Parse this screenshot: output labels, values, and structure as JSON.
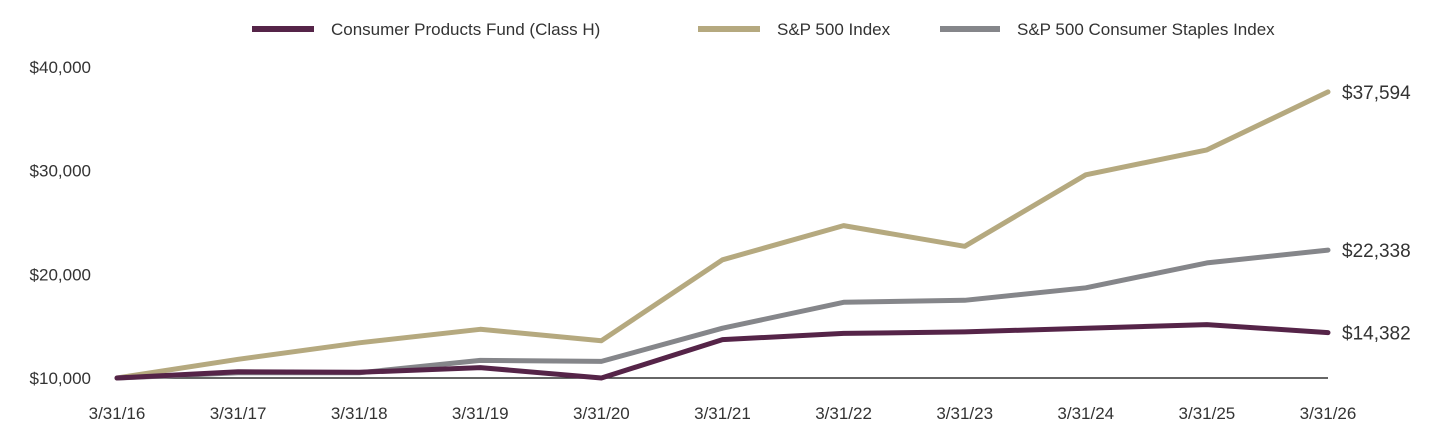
{
  "chart_data": {
    "type": "line",
    "title": "",
    "xlabel": "",
    "ylabel": "",
    "x": [
      "3/31/16",
      "3/31/17",
      "3/31/18",
      "3/31/19",
      "3/31/20",
      "3/31/21",
      "3/31/22",
      "3/31/23",
      "3/31/24",
      "3/31/25",
      "3/31/26"
    ],
    "ylim": [
      10000,
      40000
    ],
    "yticks": [
      10000,
      20000,
      30000,
      40000
    ],
    "ytick_labels": [
      "$10,000",
      "$20,000",
      "$30,000",
      "$40,000"
    ],
    "grid": false,
    "legend_position": "top",
    "series": [
      {
        "name": "Consumer Products Fund (Class H)",
        "color": "#552448",
        "values": [
          10000,
          10600,
          10550,
          11000,
          10000,
          13700,
          14300,
          14450,
          14800,
          15150,
          14382
        ],
        "end_label": "$14,382"
      },
      {
        "name": "S&P 500 Index",
        "color": "#B5A97F",
        "values": [
          10000,
          11800,
          13400,
          14700,
          13600,
          21400,
          24700,
          22700,
          29600,
          32000,
          37594
        ],
        "end_label": "$37,594"
      },
      {
        "name": "S&P 500 Consumer Staples Index",
        "color": "#85868A",
        "values": [
          10000,
          10500,
          10500,
          11700,
          11600,
          14800,
          17300,
          17500,
          18700,
          21100,
          22338
        ],
        "end_label": "$22,338"
      }
    ]
  }
}
